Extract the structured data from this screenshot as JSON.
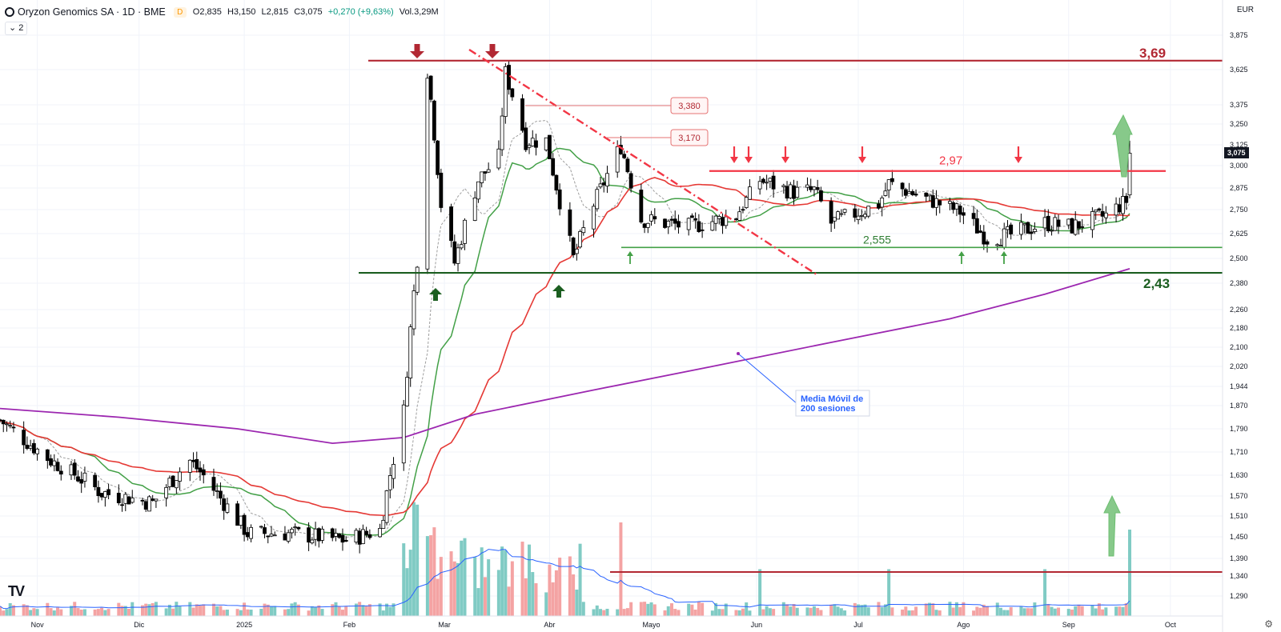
{
  "header": {
    "title": "Oryzon Genomics SA · 1D · BME",
    "badge": "D",
    "open": "O2,835",
    "high": "H3,150",
    "low": "L2,815",
    "close": "C3,075",
    "change": "+0,270 (+9,63%)",
    "volume": "Vol.3,29M",
    "layers_count": "2",
    "currency": "EUR"
  },
  "chart_data": {
    "type": "candlestick",
    "title": "Oryzon Genomics SA · 1D · BME",
    "currency": "EUR",
    "last_price": "3,075",
    "x_tick_labels": [
      "Nov",
      "Dic",
      "2025",
      "Feb",
      "Mar",
      "Abr",
      "Mayo",
      "Jun",
      "Jul",
      "Ago",
      "Sep",
      "Oct"
    ],
    "y_tick_labels": [
      "3,875",
      "3,625",
      "3,375",
      "3,250",
      "3,125",
      "3,000",
      "2,875",
      "2,750",
      "2,625",
      "2,500",
      "2,380",
      "2,260",
      "2,180",
      "2,100",
      "2,020",
      "1,944",
      "1,870",
      "1,790",
      "1,710",
      "1,630",
      "1,570",
      "1,510",
      "1,450",
      "1,390",
      "1,340",
      "1,290"
    ],
    "y_tick_values": [
      3.875,
      3.625,
      3.375,
      3.25,
      3.125,
      3.0,
      2.875,
      2.75,
      2.625,
      2.5,
      2.38,
      2.26,
      2.18,
      2.1,
      2.02,
      1.944,
      1.87,
      1.79,
      1.71,
      1.63,
      1.57,
      1.51,
      1.45,
      1.39,
      1.34,
      1.29
    ],
    "y_scale": "log",
    "date_range": [
      "2024-10-21",
      "2025-10-10"
    ],
    "levels": [
      {
        "label": "3,69",
        "value": 3.69,
        "color": "#b22833"
      },
      {
        "label": "2,97",
        "value": 2.97,
        "color": "#f23645"
      },
      {
        "label": "2,555",
        "value": 2.555,
        "color": "#43a047"
      },
      {
        "label": "2,43",
        "value": 2.43,
        "color": "#1b5e20"
      }
    ],
    "callouts": [
      {
        "label": "3,380",
        "value": 3.38
      },
      {
        "label": "3,170",
        "value": 3.17
      }
    ],
    "annotations": [
      "Media Móvil de\n200 sesiones"
    ],
    "series": [
      {
        "name": "Precio",
        "color_up": "#ffffff",
        "color_down": "#000000"
      },
      {
        "name": "Media Móvil 200",
        "color": "#9c27b0",
        "values": [
          1.86,
          1.83,
          1.79,
          1.74,
          1.76,
          1.84,
          1.93,
          2.02,
          2.12,
          2.22,
          2.33,
          2.45
        ]
      },
      {
        "name": "MA 50",
        "color": "#e53935"
      },
      {
        "name": "MA 20",
        "color": "#43a047"
      },
      {
        "name": "MA 10",
        "color": "#999999"
      },
      {
        "name": "Volumen",
        "color_up": "#80cbc4",
        "color_down": "#f4a3a3"
      }
    ],
    "grid": true,
    "legend": "none"
  },
  "colors": {
    "resistance": "#f23645",
    "support": "#43a047",
    "ma200": "#9c27b0",
    "ma50": "#e53935",
    "ma20": "#43a047",
    "volume_up": "#80cbc4",
    "volume_down": "#f4a3a3",
    "arrow_up": "#1b5e20",
    "arrow_down": "#b22833"
  }
}
